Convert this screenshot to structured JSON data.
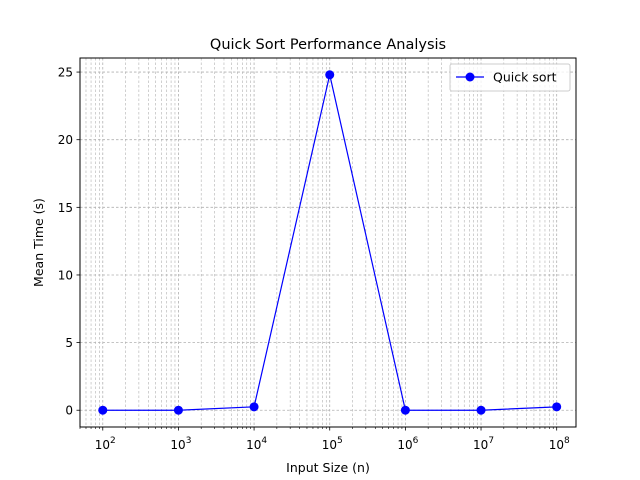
{
  "chart_data": {
    "type": "line",
    "title": "Quick Sort Performance Analysis",
    "xlabel": "Input Size (n)",
    "ylabel": "Mean Time (s)",
    "x_scale": "log",
    "xlim": [
      50,
      180000000
    ],
    "ylim": [
      -1.24,
      26.04
    ],
    "x_ticks": [
      100,
      1000,
      10000,
      100000,
      1000000,
      10000000,
      100000000
    ],
    "x_tick_labels": [
      {
        "base": "10",
        "exp": "2"
      },
      {
        "base": "10",
        "exp": "3"
      },
      {
        "base": "10",
        "exp": "4"
      },
      {
        "base": "10",
        "exp": "5"
      },
      {
        "base": "10",
        "exp": "6"
      },
      {
        "base": "10",
        "exp": "7"
      },
      {
        "base": "10",
        "exp": "8"
      }
    ],
    "y_ticks": [
      0,
      5,
      10,
      15,
      20,
      25
    ],
    "y_tick_labels": [
      "0",
      "5",
      "10",
      "15",
      "20",
      "25"
    ],
    "grid": true,
    "legend_position": "top-right",
    "series": [
      {
        "name": "Quick sort",
        "color": "#0000ff",
        "marker": "circle",
        "x": [
          100,
          1000,
          10000,
          100000,
          1000000,
          10000000,
          100000000
        ],
        "y": [
          0.0,
          0.0,
          0.25,
          24.8,
          0.0,
          0.0,
          0.25
        ]
      }
    ]
  }
}
